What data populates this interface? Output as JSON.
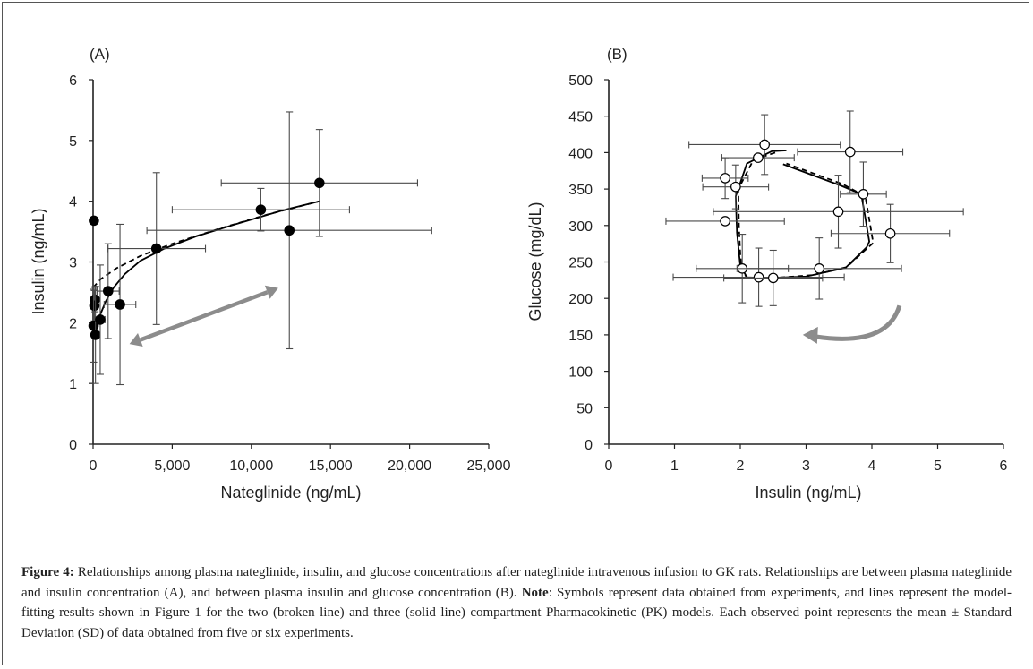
{
  "colors": {
    "axis": "#222222",
    "errorbar": "#4a4a4a",
    "marker_filled": "#000000",
    "marker_open": "#ffffff",
    "arrow": "#8c8c8c",
    "model_line": "#000000"
  },
  "chart_data": [
    {
      "id": "A",
      "type": "scatter",
      "panel_label": "(A)",
      "xlabel": "Nateglinide (ng/mL)",
      "ylabel": "Insulin (ng/mL)",
      "xlim": [
        0,
        25000
      ],
      "ylim": [
        0,
        6
      ],
      "xticks": [
        0,
        5000,
        10000,
        15000,
        20000,
        25000
      ],
      "xtick_labels": [
        "0",
        "5,000",
        "10,000",
        "15,000",
        "20,000",
        "25,000"
      ],
      "yticks": [
        0,
        1,
        2,
        3,
        4,
        5,
        6
      ],
      "ytick_labels": [
        "0",
        "1",
        "2",
        "3",
        "4",
        "5",
        "6"
      ],
      "marker": "filled",
      "points": [
        {
          "x": 50,
          "y": 3.68,
          "xerr": 60,
          "yerr": 0.0
        },
        {
          "x": 120,
          "y": 2.38,
          "xerr": 150,
          "yerr": 0.2
        },
        {
          "x": 80,
          "y": 2.28,
          "xerr": 100,
          "yerr": 0.25
        },
        {
          "x": 30,
          "y": 1.95,
          "xerr": 40,
          "yerr": 0.6
        },
        {
          "x": 150,
          "y": 1.8,
          "xerr": 150,
          "yerr": 0.8
        },
        {
          "x": 450,
          "y": 2.05,
          "xerr": 300,
          "yerr": 0.9
        },
        {
          "x": 950,
          "y": 2.52,
          "xerr": 700,
          "yerr": 0.78
        },
        {
          "x": 1700,
          "y": 2.3,
          "xerr": 1000,
          "yerr": 1.32
        },
        {
          "x": 4000,
          "y": 3.22,
          "xerr": 3100,
          "yerr": 1.25
        },
        {
          "x": 10600,
          "y": 3.86,
          "xerr": 5600,
          "yerr": 0.35
        },
        {
          "x": 12400,
          "y": 3.52,
          "xerr": 9000,
          "yerr": 1.95
        },
        {
          "x": 14300,
          "y": 4.3,
          "xerr": 6200,
          "yerr": 0.88
        }
      ],
      "series": [
        {
          "name": "two-compartment (broken line)",
          "style": "dashed",
          "x": [
            0,
            500,
            1500,
            3000,
            5000,
            8000,
            11000,
            14300
          ],
          "y": [
            2.58,
            2.72,
            2.9,
            3.1,
            3.3,
            3.55,
            3.78,
            4.0
          ]
        },
        {
          "name": "three-compartment (solid line)",
          "style": "solid",
          "x": [
            0,
            150,
            400,
            800,
            1300,
            2000,
            3000,
            4500,
            6500,
            9000,
            12000,
            14300
          ],
          "y": [
            1.8,
            1.9,
            2.1,
            2.35,
            2.58,
            2.8,
            3.02,
            3.22,
            3.42,
            3.62,
            3.85,
            4.0
          ]
        }
      ],
      "annotation": {
        "type": "double-arrow",
        "from": [
          2300,
          1.65
        ],
        "to": [
          11700,
          2.57
        ]
      }
    },
    {
      "id": "B",
      "type": "scatter",
      "panel_label": "(B)",
      "xlabel": "Insulin (ng/mL)",
      "ylabel": "Glucose (mg/dL)",
      "xlim": [
        0,
        6
      ],
      "ylim": [
        0,
        500
      ],
      "xticks": [
        0,
        1,
        2,
        3,
        4,
        5,
        6
      ],
      "xtick_labels": [
        "0",
        "1",
        "2",
        "3",
        "4",
        "5",
        "6"
      ],
      "yticks": [
        0,
        50,
        100,
        150,
        200,
        250,
        300,
        350,
        400,
        450,
        500
      ],
      "ytick_labels": [
        "0",
        "50",
        "100",
        "150",
        "200",
        "250",
        "300",
        "350",
        "400",
        "450",
        "500"
      ],
      "marker": "open",
      "points": [
        {
          "x": 1.77,
          "y": 306,
          "xerr": 0.9,
          "yerr": 0
        },
        {
          "x": 1.77,
          "y": 365,
          "xerr": 0.35,
          "yerr": 28
        },
        {
          "x": 1.93,
          "y": 353,
          "xerr": 0.5,
          "yerr": 30
        },
        {
          "x": 2.27,
          "y": 393,
          "xerr": 0.55,
          "yerr": 0
        },
        {
          "x": 2.37,
          "y": 411,
          "xerr": 1.15,
          "yerr": 41
        },
        {
          "x": 3.67,
          "y": 401,
          "xerr": 0.8,
          "yerr": 56
        },
        {
          "x": 3.87,
          "y": 343,
          "xerr": 0.35,
          "yerr": 44
        },
        {
          "x": 3.49,
          "y": 319,
          "xerr": 1.9,
          "yerr": 50
        },
        {
          "x": 4.28,
          "y": 289,
          "xerr": 0.9,
          "yerr": 40
        },
        {
          "x": 2.03,
          "y": 241,
          "xerr": 0.7,
          "yerr": 47
        },
        {
          "x": 2.28,
          "y": 229,
          "xerr": 1.3,
          "yerr": 40
        },
        {
          "x": 2.5,
          "y": 228,
          "xerr": 0.75,
          "yerr": 38
        },
        {
          "x": 3.2,
          "y": 241,
          "xerr": 1.25,
          "yerr": 42
        }
      ],
      "series": [
        {
          "name": "two-compartment (broken line)",
          "style": "dashed",
          "x": [
            2.53,
            2.2,
            1.97,
            1.98,
            2.0,
            2.03,
            2.12,
            2.5,
            3.1,
            3.62,
            3.88,
            4.02,
            3.9,
            3.55,
            2.7
          ],
          "y": [
            400,
            390,
            350,
            300,
            260,
            235,
            228,
            228,
            232,
            243,
            265,
            276,
            340,
            357,
            385
          ]
        },
        {
          "name": "three-compartment (solid line)",
          "style": "solid",
          "x": [
            2.7,
            2.48,
            2.1,
            1.93,
            1.95,
            2.0,
            2.1,
            2.4,
            3.0,
            3.6,
            3.92,
            3.96,
            3.84,
            3.52,
            2.65
          ],
          "y": [
            403,
            402,
            385,
            340,
            290,
            245,
            229,
            228,
            230,
            242,
            270,
            278,
            343,
            355,
            384
          ]
        }
      ],
      "annotation": {
        "type": "curved-arrow",
        "from": [
          4.42,
          190
        ],
        "to": [
          2.95,
          150
        ]
      }
    }
  ],
  "caption": {
    "figure_label": "Figure 4:",
    "text1": " Relationships among plasma nateglinide, insulin, and glucose concentrations after nateglinide intravenous infusion to GK rats. Relationships are between plasma nateglinide and insulin concentration (A), and between plasma insulin and glucose concentration (B).  ",
    "note_label": "Note",
    "text2": ": Symbols represent data obtained from experiments, and lines represent the model-fitting results shown in Figure 1 for the two (broken line) and three (solid line) compartment Pharmacokinetic (PK) models. Each observed point represents the mean ± Standard Deviation (SD) of data obtained from five or six experiments."
  }
}
